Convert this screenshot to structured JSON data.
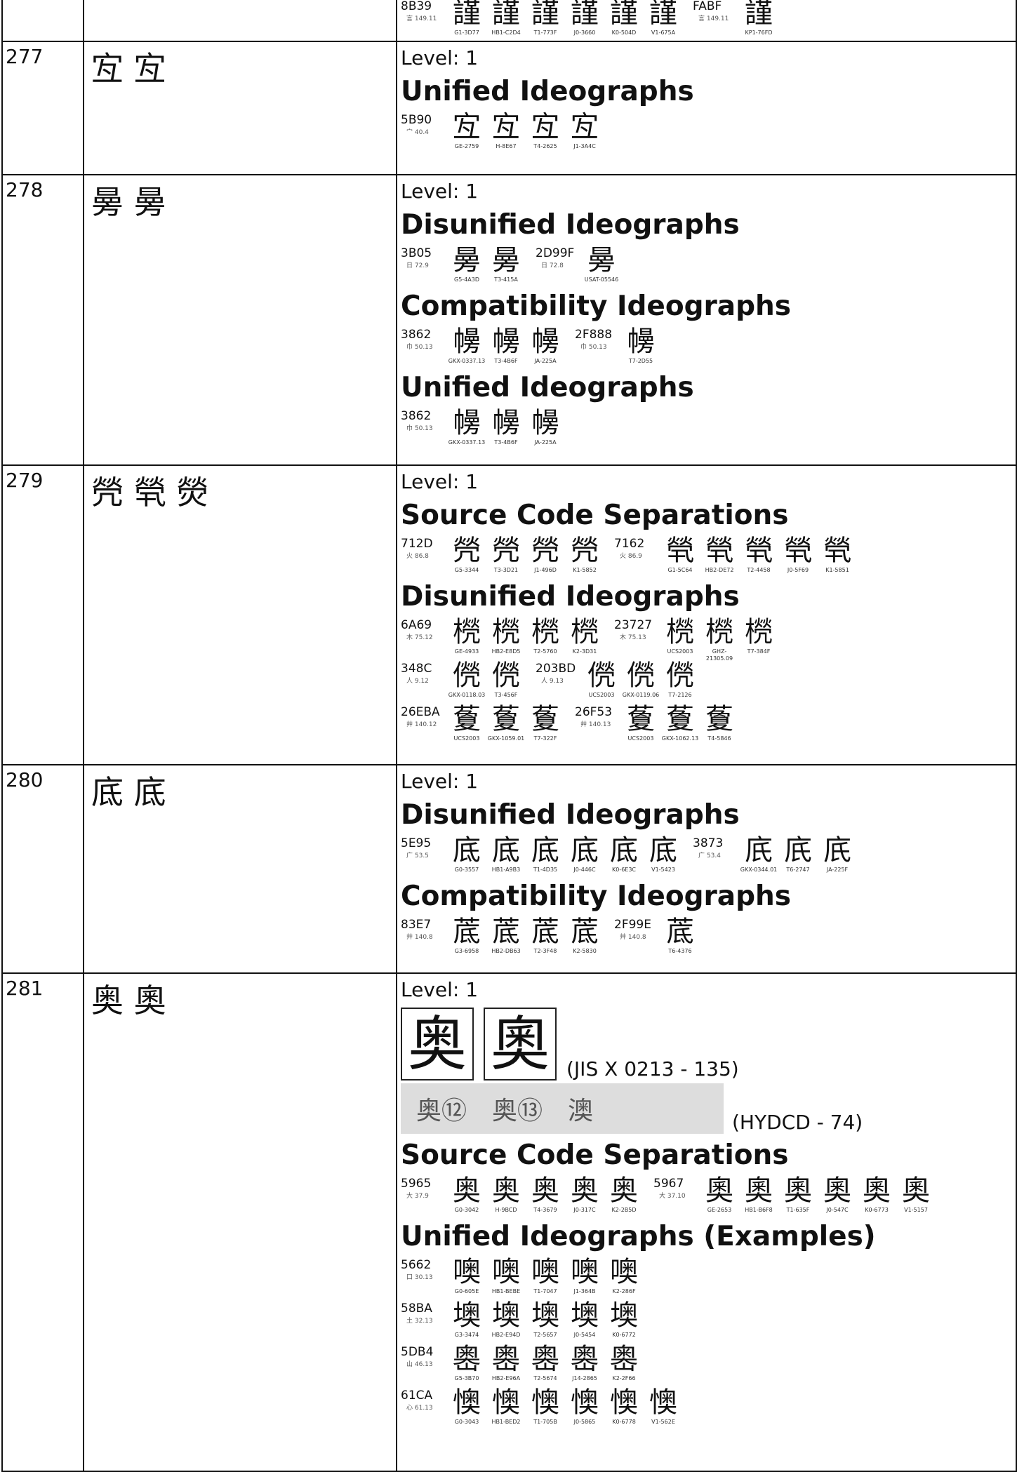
{
  "top_row": {
    "groups": [
      {
        "code": "8B39",
        "radical": "言 149.11",
        "glyph": "謹",
        "sources": [
          "G1-3D77",
          "HB1-C2D4",
          "T1-773F",
          "J0-3660",
          "K0-504D",
          "V1-675A"
        ]
      },
      {
        "code": "FABF",
        "radical": "言 149.11",
        "glyph": "謹",
        "sources": [
          "KP1-76FD"
        ]
      }
    ]
  },
  "rows": [
    {
      "number": "277",
      "chars": "宐 宐",
      "level": "Level: 1",
      "sections": [
        {
          "heading": "Unified Ideographs",
          "lines": [
            [
              {
                "code": "5B90",
                "radical": "宀 40.4",
                "glyph": "宐",
                "sources": [
                  "GE-2759",
                  "H-8E67",
                  "T4-2625",
                  "J1-3A4C"
                ]
              }
            ]
          ]
        }
      ]
    },
    {
      "number": "278",
      "chars": "㬅 㬅",
      "level": "Level: 1",
      "sections": [
        {
          "heading": "Disunified Ideographs",
          "lines": [
            [
              {
                "code": "3B05",
                "radical": "日 72.9",
                "glyph": "㬅",
                "sources": [
                  "G5-4A3D",
                  "T3-415A"
                ]
              },
              {
                "code": "2D99F",
                "radical": "日 72.8",
                "glyph": "㬅",
                "sources": [
                  "USAT-05546"
                ]
              }
            ]
          ]
        },
        {
          "heading": "Compatibility Ideographs",
          "lines": [
            [
              {
                "code": "3862",
                "radical": "巾 50.13",
                "glyph": "㡢",
                "sources": [
                  "GKX-0337.13",
                  "T3-4B6F",
                  "JA-225A"
                ]
              },
              {
                "code": "2F888",
                "radical": "巾 50.13",
                "glyph": "㡢",
                "sources": [
                  "T7-2D55"
                ]
              }
            ]
          ]
        },
        {
          "heading": "Unified Ideographs",
          "lines": [
            [
              {
                "code": "3862",
                "radical": "巾 50.13",
                "glyph": "㡢",
                "sources": [
                  "GKX-0337.13",
                  "T3-4B6F",
                  "JA-225A"
                ]
              }
            ]
          ]
        }
      ]
    },
    {
      "number": "279",
      "chars": "焭 煢 熒",
      "level": "Level: 1",
      "sections": [
        {
          "heading": "Source Code Separations",
          "lines": [
            [
              {
                "code": "712D",
                "radical": "火 86.8",
                "glyph": "焭",
                "sources": [
                  "G5-3344",
                  "T3-3D21",
                  "J1-496D",
                  "K1-5852"
                ]
              },
              {
                "code": "7162",
                "radical": "火 86.9",
                "glyph": "煢",
                "sources": [
                  "G1-5C64",
                  "HB2-DE72",
                  "T2-4458",
                  "J0-5F69",
                  "K1-5851"
                ]
              }
            ]
          ]
        },
        {
          "heading": "Disunified Ideographs",
          "lines": [
            [
              {
                "code": "6A69",
                "radical": "木 75.12",
                "glyph": "橩",
                "sources": [
                  "GE-4933",
                  "HB2-E8D5",
                  "T2-5760",
                  "K2-3D31"
                ]
              },
              {
                "code": "23727",
                "radical": "木 75.13",
                "glyph": "橩",
                "sources": [
                  "UCS2003",
                  "GHZ-21305.09",
                  "T7-384F"
                ]
              }
            ],
            [
              {
                "code": "348C",
                "radical": "人 9.12",
                "glyph": "㒌",
                "sources": [
                  "GKX-0118.03",
                  "T3-456F"
                ]
              },
              {
                "code": "203BD",
                "radical": "人 9.13",
                "glyph": "㒌",
                "sources": [
                  "UCS2003",
                  "GKX-0119.06",
                  "T7-2126"
                ]
              }
            ],
            [
              {
                "code": "26EBA",
                "radical": "艸 140.12",
                "glyph": "藑",
                "sources": [
                  "UCS2003",
                  "GKX-1059.01",
                  "T7-322F"
                ]
              },
              {
                "code": "26F53",
                "radical": "艸 140.13",
                "glyph": "藑",
                "sources": [
                  "UCS2003",
                  "GKX-1062.13",
                  "T4-5846"
                ]
              }
            ]
          ]
        }
      ]
    },
    {
      "number": "280",
      "chars": "底 底",
      "level": "Level: 1",
      "sections": [
        {
          "heading": "Disunified Ideographs",
          "lines": [
            [
              {
                "code": "5E95",
                "radical": "广 53.5",
                "glyph": "底",
                "sources": [
                  "G0-3557",
                  "HB1-A9B3",
                  "T1-4D35",
                  "J0-446C",
                  "K0-6E3C",
                  "V1-5423"
                ]
              },
              {
                "code": "3873",
                "radical": "广 53.4",
                "glyph": "㡳",
                "sources": [
                  "GKX-0344.01",
                  "T6-2747",
                  "JA-225F"
                ]
              }
            ]
          ]
        },
        {
          "heading": "Compatibility Ideographs",
          "lines": [
            [
              {
                "code": "83E7",
                "radical": "艸 140.8",
                "glyph": "菧",
                "sources": [
                  "G3-6958",
                  "HB2-DB63",
                  "T2-3F48",
                  "K2-5830"
                ]
              },
              {
                "code": "2F99E",
                "radical": "艸 140.8",
                "glyph": "菧",
                "sources": [
                  "T6-4376"
                ]
              }
            ]
          ]
        }
      ]
    },
    {
      "number": "281",
      "chars": "奥 奧",
      "level": "Level: 1",
      "evidence": [
        {
          "glyphs": [
            "奥",
            "奧"
          ],
          "caption": "(JIS X 0213 - 135)"
        },
        {
          "glyphs": [
            "奥⑫",
            "奥⑬",
            "澳"
          ],
          "caption": "(HYDCD - 74)"
        }
      ],
      "sections": [
        {
          "heading": "Source Code Separations",
          "lines": [
            [
              {
                "code": "5965",
                "radical": "大 37.9",
                "glyph": "奥",
                "sources": [
                  "G0-3042",
                  "H-9BCD",
                  "T4-3679",
                  "J0-317C",
                  "K2-2B5D"
                ]
              },
              {
                "code": "5967",
                "radical": "大 37.10",
                "glyph": "奧",
                "sources": [
                  "GE-2653",
                  "HB1-B6F8",
                  "T1-635F",
                  "J0-547C",
                  "K0-6773",
                  "V1-5157"
                ]
              }
            ]
          ]
        },
        {
          "heading": "Unified Ideographs (Examples)",
          "lines": [
            [
              {
                "code": "5662",
                "radical": "口 30.13",
                "glyph": "噢",
                "sources": [
                  "G0-605E",
                  "HB1-BEBE",
                  "T1-7047",
                  "J1-364B",
                  "K2-286F"
                ]
              }
            ],
            [
              {
                "code": "58BA",
                "radical": "土 32.13",
                "glyph": "墺",
                "sources": [
                  "G3-3474",
                  "HB2-E94D",
                  "T2-5657",
                  "J0-5454",
                  "K0-6772"
                ]
              }
            ],
            [
              {
                "code": "5DB4",
                "radical": "山 46.13",
                "glyph": "嶴",
                "sources": [
                  "G5-3B70",
                  "HB2-E96A",
                  "T2-5674",
                  "J14-2865",
                  "K2-2F66"
                ]
              }
            ],
            [
              {
                "code": "61CA",
                "radical": "心 61.13",
                "glyph": "懊",
                "sources": [
                  "G0-3043",
                  "HB1-BED2",
                  "T1-705B",
                  "J0-5865",
                  "K0-6778",
                  "V1-562E"
                ]
              }
            ]
          ]
        }
      ]
    }
  ]
}
